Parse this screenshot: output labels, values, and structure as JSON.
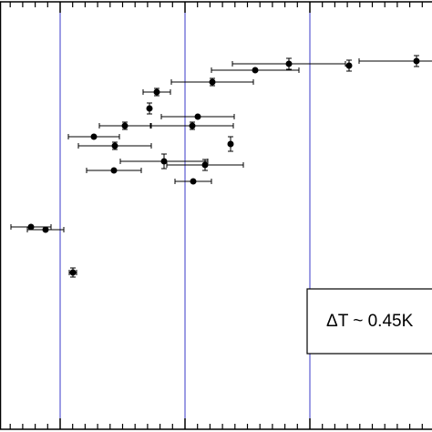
{
  "chart_data": {
    "type": "scatter",
    "annotation": "ΔT ~ 0.45K",
    "xlim": [
      0,
      474
    ],
    "ylim": [
      0,
      474
    ],
    "xticks": [
      66,
      203,
      340
    ],
    "xminorticks": [
      11.2,
      24.9,
      38.6,
      52.3,
      79.7,
      93.4,
      107.1,
      120.8,
      134.5,
      148.2,
      161.9,
      175.6,
      189.3,
      216.7,
      230.4,
      244.1,
      257.8,
      271.5,
      285.2,
      298.9,
      312.6,
      326.3,
      353.7,
      367.4,
      381.1,
      394.8,
      408.5,
      422.2,
      435.9,
      449.6,
      463.3
    ],
    "grid": true,
    "grid_color": "#3a3ac8",
    "series": [
      {
        "color": "#000000",
        "x": [
          457,
          383,
          317,
          280,
          233,
          172,
          164,
          217,
          137,
          211,
          103,
          126,
          253,
          180,
          225,
          125,
          212,
          34,
          50,
          80
        ],
        "values": [
          407,
          402,
          404,
          397,
          384,
          373,
          355,
          346,
          336,
          336,
          324,
          314,
          316,
          297,
          293,
          287,
          275,
          225,
          222,
          175
        ],
        "x_err": [
          63,
          0,
          62,
          48,
          45,
          15,
          0,
          40,
          28,
          45,
          28,
          40,
          0,
          48,
          42,
          30,
          20,
          22,
          20,
          4
        ],
        "y_err": [
          6,
          6,
          6,
          0,
          4,
          4,
          6,
          0,
          4,
          4,
          0,
          4,
          8,
          8,
          6,
          0,
          0,
          0,
          0,
          5
        ]
      }
    ]
  }
}
